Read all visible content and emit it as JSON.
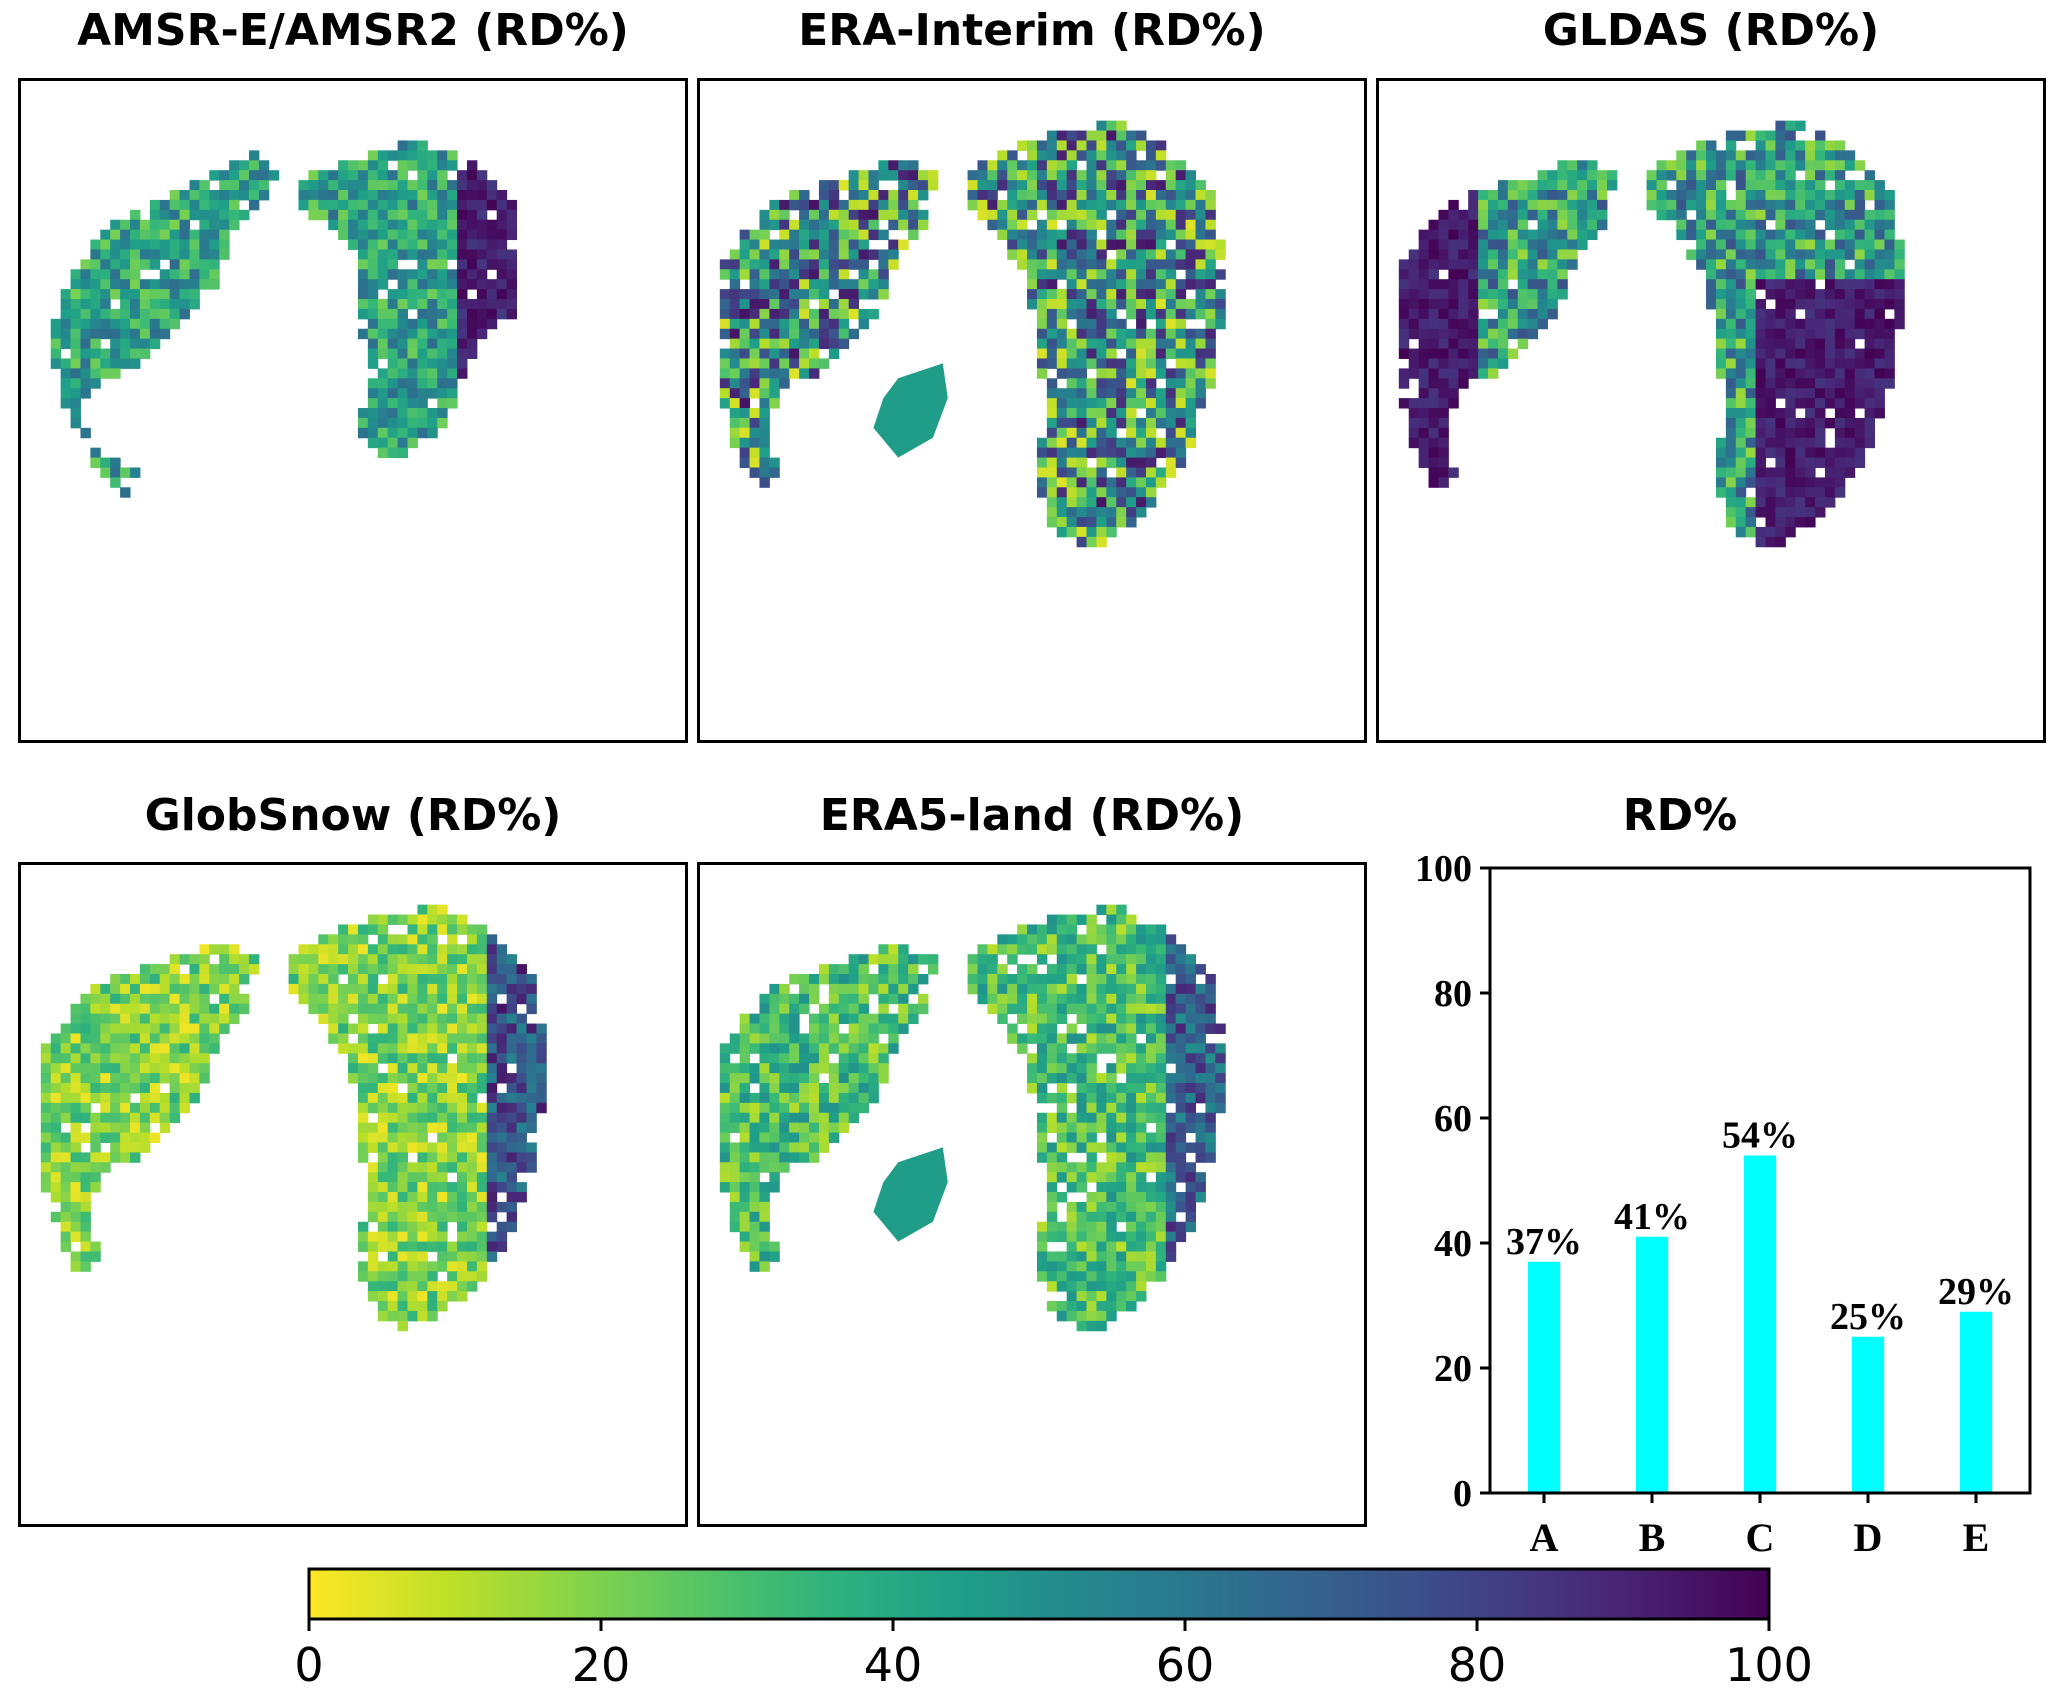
{
  "panels": [
    {
      "title": "AMSR-E/AMSR2 (RD%)",
      "style": "mixed-dark-east"
    },
    {
      "title": "ERA-Interim (RD%)",
      "style": "speckled-blue"
    },
    {
      "title": "GLDAS (RD%)",
      "style": "dark-purple"
    },
    {
      "title": "GlobSnow (RD%)",
      "style": "yellow-green"
    },
    {
      "title": "ERA5-land (RD%)",
      "style": "smooth-green"
    }
  ],
  "chart_data": {
    "type": "bar",
    "title": "RD%",
    "categories": [
      "A",
      "B",
      "C",
      "D",
      "E"
    ],
    "values": [
      37,
      41,
      54,
      25,
      29
    ],
    "data_labels": [
      "37%",
      "41%",
      "54%",
      "25%",
      "29%"
    ],
    "ylim": [
      0,
      100
    ],
    "yticks": [
      "0",
      "20",
      "40",
      "60",
      "80",
      "100"
    ],
    "bar_color": "#00FFFF",
    "grid": false
  },
  "colorbar": {
    "colormap": "viridis_r",
    "range": [
      0,
      100
    ],
    "ticks": [
      "0",
      "20",
      "40",
      "60",
      "80",
      "100"
    ]
  }
}
